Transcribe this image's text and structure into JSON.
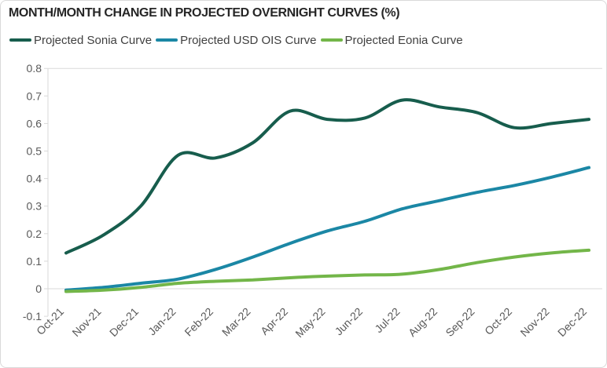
{
  "panel": {
    "border_color": "#d9d9d9",
    "background_color": "#ffffff"
  },
  "chart_data": {
    "type": "line",
    "title": "MONTH/MONTH CHANGE IN PROJECTED OVERNIGHT CURVES (%)",
    "title_color": "#262626",
    "legend_position": "top-left",
    "legend_text_color": "#404040",
    "categories": [
      "Oct-21",
      "Nov-21",
      "Dec-21",
      "Jan-22",
      "Feb-22",
      "Mar-22",
      "Apr-22",
      "May-22",
      "Jun-22",
      "Jul-22",
      "Aug-22",
      "Sep-22",
      "Oct-22",
      "Nov-22",
      "Dec-22"
    ],
    "series": [
      {
        "name": "Projected Sonia Curve",
        "color": "#175d4d",
        "values": [
          0.13,
          0.195,
          0.3,
          0.485,
          0.475,
          0.53,
          0.645,
          0.615,
          0.62,
          0.685,
          0.66,
          0.64,
          0.585,
          0.6,
          0.615
        ]
      },
      {
        "name": "Projected USD OIS Curve",
        "color": "#1b87a5",
        "values": [
          -0.005,
          0.005,
          0.02,
          0.035,
          0.07,
          0.115,
          0.165,
          0.21,
          0.245,
          0.29,
          0.32,
          0.35,
          0.375,
          0.405,
          0.44
        ]
      },
      {
        "name": "Projected Eonia Curve",
        "color": "#73b649",
        "values": [
          -0.01,
          -0.005,
          0.005,
          0.02,
          0.027,
          0.032,
          0.04,
          0.046,
          0.05,
          0.053,
          0.07,
          0.095,
          0.115,
          0.13,
          0.14
        ]
      }
    ],
    "xlabel": "",
    "ylabel": "",
    "ylim": [
      -0.1,
      0.8
    ],
    "y_tick_step": 0.1,
    "y_tick_labels": [
      "0.8",
      "0.7",
      "0.6",
      "0.5",
      "0.4",
      "0.3",
      "0.2",
      "0.1",
      "0",
      "-0.1"
    ],
    "x_tick_rotation_deg": -45,
    "grid": "horizontal gridlines at 0.8 and 0 only",
    "axis_color": "#d9d9d9",
    "tick_label_color": "#595959",
    "line_smoothing": "smoothed"
  }
}
